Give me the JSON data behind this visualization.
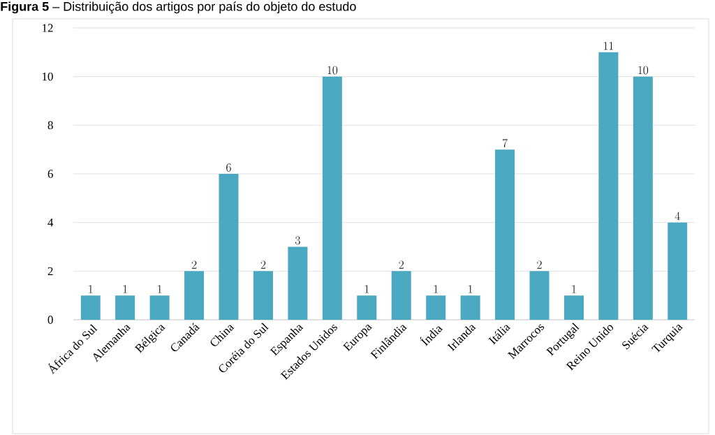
{
  "chart_data": {
    "type": "bar",
    "title": "**Figura 5** – Distribuição dos artigos por país do objeto do estudo",
    "categories": [
      "África do Sul",
      "Alemanha",
      "Bélgica",
      "Canadá",
      "China",
      "Coréia do Sul",
      "Espanha",
      "Estados Unidos",
      "Europa",
      "Finlândia",
      "Índia",
      "Irlanda",
      "Itália",
      "Marrocos",
      "Portugal",
      "Reino Unido",
      "Suécia",
      "Turquia"
    ],
    "values": [
      1,
      1,
      1,
      2,
      6,
      2,
      3,
      10,
      1,
      2,
      1,
      1,
      7,
      2,
      1,
      11,
      10,
      4
    ],
    "color": "#4aa8c0",
    "ylim": [
      0,
      12
    ],
    "yticks": [
      0,
      2,
      4,
      6,
      8,
      10,
      12
    ],
    "grid": "y",
    "data_labels": true
  }
}
